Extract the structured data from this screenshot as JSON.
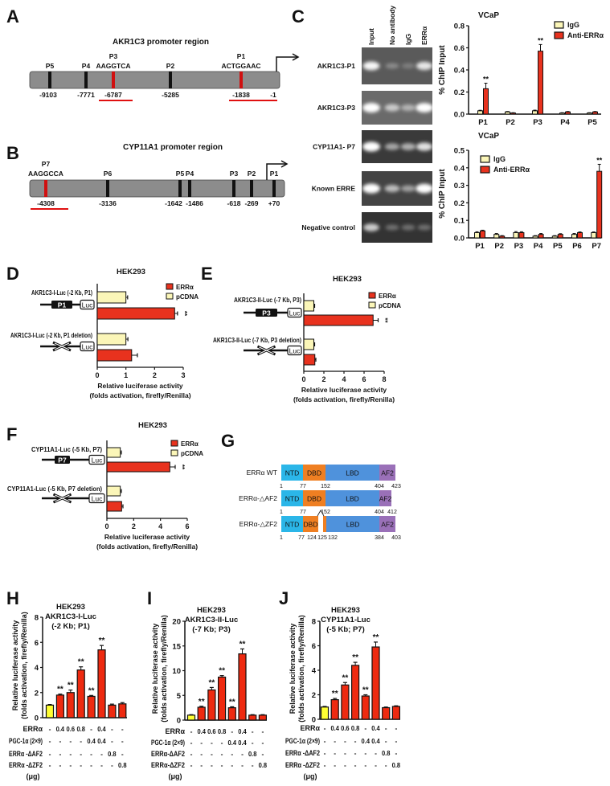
{
  "panel_labels": [
    "A",
    "B",
    "C",
    "D",
    "E",
    "F",
    "G",
    "H",
    "I",
    "J"
  ],
  "promoters": {
    "akr1c3": {
      "title": "AKR1C3 promoter region",
      "sites": [
        {
          "name": "P5",
          "motif": "",
          "position": "-9103",
          "color": "#111111"
        },
        {
          "name": "P4",
          "motif": "",
          "position": "-7771",
          "color": "#111111"
        },
        {
          "name": "P3",
          "motif": "AAGGTCA",
          "position": "-6787",
          "color": "#d01010"
        },
        {
          "name": "P2",
          "motif": "",
          "position": "-5285",
          "color": "#111111"
        },
        {
          "name": "P1",
          "motif": "ACTGGAAC",
          "position": "-1838",
          "color": "#d01010"
        }
      ],
      "end_position": "-1"
    },
    "cyp11a1": {
      "title": "CYP11A1 promoter region",
      "sites": [
        {
          "name": "P7",
          "motif": "AAGGCCA",
          "position": "-4308",
          "color": "#d01010"
        },
        {
          "name": "P6",
          "motif": "",
          "position": "-3136",
          "color": "#111111"
        },
        {
          "name": "P5",
          "motif": "",
          "position": "-1642",
          "color": "#111111"
        },
        {
          "name": "P4",
          "motif": "",
          "position": "-1486",
          "color": "#111111"
        },
        {
          "name": "P3",
          "motif": "",
          "position": "-618",
          "color": "#111111"
        },
        {
          "name": "P2",
          "motif": "",
          "position": "-269",
          "color": "#111111"
        },
        {
          "name": "P1",
          "motif": "",
          "position": "+70",
          "color": "#111111"
        }
      ]
    }
  },
  "gel": {
    "columns": [
      "Input",
      "No antibody",
      "IgG",
      "ERRα"
    ],
    "rows": [
      "AKR1C3-P1",
      "AKR1C3-P3",
      "CYP11A1- P7",
      "Known ERRE",
      "Negative control"
    ]
  },
  "domains": {
    "constructs": [
      {
        "name": "ERRα WT",
        "segments": [
          "NTD",
          "DBD",
          "LBD",
          "AF2"
        ],
        "numbers": [
          "1",
          "77",
          "152",
          "404",
          "423"
        ]
      },
      {
        "name": "ERRα-△AF2",
        "segments": [
          "NTD",
          "DBD",
          "LBD",
          "AF2"
        ],
        "numbers": [
          "1",
          "77",
          "152",
          "404",
          "412"
        ]
      },
      {
        "name": "ERRα-△ZF2",
        "segments": [
          "NTD",
          "DBD",
          "",
          "LBD",
          "AF2"
        ],
        "numbers": [
          "1",
          "77",
          "124",
          "125",
          "132",
          "384",
          "403"
        ]
      }
    ],
    "colors": {
      "NTD": "#2bb6e8",
      "DBD": "#ef7f22",
      "LBD": "#4f92dc",
      "AF2": "#9a70b8"
    }
  },
  "chart_data": [
    {
      "panel": "C-top",
      "type": "bar",
      "title": "VCaP",
      "ylabel": "% ChIP Input",
      "categories": [
        "P1",
        "P2",
        "P3",
        "P4",
        "P5"
      ],
      "ylim": [
        0,
        0.8
      ],
      "yticks": [
        "0.0",
        "0.2",
        "0.4",
        "0.6",
        "0.8"
      ],
      "series": [
        {
          "name": "IgG",
          "color": "#fbf6b8",
          "values": [
            0.03,
            0.02,
            0.03,
            0.01,
            0.01
          ],
          "errors": [
            0.005,
            0.004,
            0.006,
            0.003,
            0.003
          ]
        },
        {
          "name": "Anti-ERRα",
          "color": "#e8321e",
          "values": [
            0.23,
            0.01,
            0.57,
            0.02,
            0.02
          ],
          "errors": [
            0.05,
            0.003,
            0.06,
            0.004,
            0.004
          ],
          "significance": [
            "**",
            "",
            "**",
            "",
            ""
          ]
        }
      ],
      "legend": "top-right"
    },
    {
      "panel": "C-bottom",
      "type": "bar",
      "title": "VCaP",
      "ylabel": "% ChIP Input",
      "categories": [
        "P1",
        "P2",
        "P3",
        "P4",
        "P5",
        "P6",
        "P7"
      ],
      "ylim": [
        0,
        0.5
      ],
      "yticks": [
        "0.0",
        "0.1",
        "0.2",
        "0.3",
        "0.4",
        "0.5"
      ],
      "series": [
        {
          "name": "IgG",
          "color": "#fbf6b8",
          "values": [
            0.03,
            0.02,
            0.03,
            0.01,
            0.01,
            0.02,
            0.03
          ],
          "errors": [
            0.005,
            0.005,
            0.006,
            0.003,
            0.003,
            0.005,
            0.004
          ]
        },
        {
          "name": "Anti-ERRα",
          "color": "#e8321e",
          "values": [
            0.04,
            0.01,
            0.03,
            0.02,
            0.02,
            0.03,
            0.38
          ],
          "errors": [
            0.004,
            0.003,
            0.005,
            0.005,
            0.004,
            0.004,
            0.04
          ],
          "significance": [
            "",
            "",
            "",
            "",
            "",
            "",
            "**"
          ]
        }
      ],
      "legend": "top-left"
    },
    {
      "panel": "D",
      "type": "bar",
      "orientation": "horizontal",
      "title": "HEK293",
      "xlabel": [
        "Relative luciferase activity",
        "(folds activation, firefly/Renilla)"
      ],
      "categories": [
        "AKR1C3-I-Luc (-2 Kb, P1)",
        "AKR1C3-I-Luc (-2 Kb, P1 deletion)"
      ],
      "constructs": [
        {
          "element": "P1",
          "reporter": "Luc",
          "deleted": false
        },
        {
          "element": "",
          "reporter": "Luc",
          "deleted": true
        }
      ],
      "xlim": [
        0,
        3
      ],
      "xticks": [
        "0",
        "1",
        "2",
        "3"
      ],
      "series": [
        {
          "name": "ERRα",
          "color": "#e8321e",
          "values": [
            2.7,
            1.2
          ],
          "errors": [
            0.1,
            0.2
          ],
          "significance": [
            "**",
            ""
          ]
        },
        {
          "name": "pCDNA",
          "color": "#fbf6b8",
          "values": [
            1.0,
            1.0
          ],
          "errors": [
            0.06,
            0.07
          ]
        }
      ],
      "legend": "top-right"
    },
    {
      "panel": "E",
      "type": "bar",
      "orientation": "horizontal",
      "title": "HEK293",
      "xlabel": [
        "Relative luciferase activity",
        "(folds activation, firefly/Renilla)"
      ],
      "categories": [
        "AKR1C3-II-Luc (-7 Kb, P3)",
        "AKR1C3-II-Luc (-7 Kb, P3 deletion)"
      ],
      "constructs": [
        {
          "element": "P3",
          "reporter": "Luc",
          "deleted": false
        },
        {
          "element": "",
          "reporter": "Luc",
          "deleted": true
        }
      ],
      "xlim": [
        0,
        8
      ],
      "xticks": [
        "0",
        "2",
        "4",
        "6",
        "8"
      ],
      "series": [
        {
          "name": "ERRα",
          "color": "#e8321e",
          "values": [
            6.9,
            1.1
          ],
          "errors": [
            0.5,
            0.1
          ],
          "significance": [
            "**",
            ""
          ]
        },
        {
          "name": "pCDNA",
          "color": "#fbf6b8",
          "values": [
            1.0,
            1.0
          ],
          "errors": [
            0.08,
            0.08
          ]
        }
      ],
      "legend": "top-right"
    },
    {
      "panel": "F",
      "type": "bar",
      "orientation": "horizontal",
      "title": "HEK293",
      "xlabel": [
        "Relative luciferase activity",
        "(folds activation, firefly/Renilla)"
      ],
      "categories": [
        "CYP11A1-Luc (-5 Kb, P7)",
        "CYP11A1-Luc (-5 Kb, P7 deletion)"
      ],
      "constructs": [
        {
          "element": "P7",
          "reporter": "Luc",
          "deleted": false
        },
        {
          "element": "",
          "reporter": "Luc",
          "deleted": true
        }
      ],
      "xlim": [
        0,
        6
      ],
      "xticks": [
        "0",
        "2",
        "4",
        "6"
      ],
      "series": [
        {
          "name": "ERRα",
          "color": "#e8321e",
          "values": [
            4.7,
            1.1
          ],
          "errors": [
            0.4,
            0.1
          ],
          "significance": [
            "**",
            ""
          ]
        },
        {
          "name": "pCDNA",
          "color": "#fbf6b8",
          "values": [
            1.0,
            1.0
          ],
          "errors": [
            0.08,
            0.08
          ]
        }
      ],
      "legend": "top-right"
    },
    {
      "panel": "H",
      "type": "bar",
      "title": [
        "HEK293",
        "AKR1C3-I-Luc",
        "(-2 Kb; P1)"
      ],
      "ylabel": [
        "Relative luciferase activity",
        "(folds activation, firefly/Renilla)"
      ],
      "ylim": [
        0,
        8
      ],
      "yticks": [
        "0",
        "2",
        "4",
        "6",
        "8"
      ],
      "values": [
        1.0,
        1.8,
        2.0,
        3.8,
        1.7,
        5.4,
        1.0,
        1.1
      ],
      "errors": [
        0.05,
        0.08,
        0.2,
        0.25,
        0.07,
        0.35,
        0.08,
        0.1
      ],
      "colors": [
        "#ffff33",
        "#ee2a10",
        "#ee2a10",
        "#ee2a10",
        "#ee2a10",
        "#ee2a10",
        "#ee2a10",
        "#ee2a10"
      ],
      "significance": [
        "",
        "**",
        "**",
        "**",
        "**",
        "**",
        "",
        ""
      ],
      "treatments": [
        {
          "label": "ERRα",
          "values": [
            "-",
            "0.4",
            "0.6",
            "0.8",
            "-",
            "0.4",
            "-",
            "-"
          ]
        },
        {
          "label": "PGC-1α (2×9)",
          "values": [
            "-",
            "-",
            "-",
            "-",
            "0.4",
            "0.4",
            "-",
            "-"
          ]
        },
        {
          "label": "ERRα -ΔAF2",
          "values": [
            "-",
            "-",
            "-",
            "-",
            "-",
            "-",
            "0.8",
            "-"
          ]
        },
        {
          "label": "ERRα -ΔZF2",
          "values": [
            "-",
            "-",
            "-",
            "-",
            "-",
            "-",
            "-",
            "0.8"
          ]
        }
      ],
      "unit": "(μg)"
    },
    {
      "panel": "I",
      "type": "bar",
      "title": [
        "HEK293",
        "AKR1C3-II-Luc",
        "(-7 Kb; P3)"
      ],
      "ylabel": [
        "Relative luciferase activity",
        "(folds activation, firefly/Renilla)"
      ],
      "ylim": [
        0,
        20
      ],
      "yticks": [
        "0",
        "5",
        "10",
        "15",
        "20"
      ],
      "values": [
        1.0,
        2.6,
        6.1,
        8.7,
        2.5,
        13.4,
        1.0,
        1.0
      ],
      "errors": [
        0.1,
        0.2,
        0.5,
        0.3,
        0.2,
        1.0,
        0.1,
        0.1
      ],
      "colors": [
        "#ffff33",
        "#ee2a10",
        "#ee2a10",
        "#ee2a10",
        "#ee2a10",
        "#ee2a10",
        "#ee2a10",
        "#ee2a10"
      ],
      "significance": [
        "",
        "**",
        "**",
        "**",
        "**",
        "**",
        "",
        ""
      ],
      "treatments": [
        {
          "label": "ERRα",
          "values": [
            "-",
            "0.4",
            "0.6",
            "0.8",
            "-",
            "0.4",
            "-",
            "-"
          ]
        },
        {
          "label": "PGC-1α (2×9)",
          "values": [
            "-",
            "-",
            "-",
            "-",
            "0.4",
            "0.4",
            "-",
            "-"
          ]
        },
        {
          "label": "ERRα-ΔAF2",
          "values": [
            "-",
            "-",
            "-",
            "-",
            "-",
            "-",
            "0.8",
            "-"
          ]
        },
        {
          "label": "ERRα-ΔZF2",
          "values": [
            "-",
            "-",
            "-",
            "-",
            "-",
            "-",
            "-",
            "0.8"
          ]
        }
      ],
      "unit": "(μg)"
    },
    {
      "panel": "J",
      "type": "bar",
      "title": [
        "HEK293",
        "CYP11A1-Luc",
        "(-5 Kb; P7)"
      ],
      "ylabel": [
        "Relative luciferase activity",
        "(folds activation, firefly/Renilla)"
      ],
      "ylim": [
        0,
        8
      ],
      "yticks": [
        "0",
        "2",
        "4",
        "6",
        "8"
      ],
      "values": [
        1.0,
        1.6,
        2.8,
        4.4,
        1.9,
        5.9,
        0.95,
        1.05
      ],
      "errors": [
        0.05,
        0.1,
        0.2,
        0.25,
        0.1,
        0.4,
        0.05,
        0.05
      ],
      "colors": [
        "#ffff33",
        "#ee2a10",
        "#ee2a10",
        "#ee2a10",
        "#ee2a10",
        "#ee2a10",
        "#ee2a10",
        "#ee2a10"
      ],
      "significance": [
        "",
        "**",
        "**",
        "**",
        "**",
        "**",
        "",
        ""
      ],
      "treatments": [
        {
          "label": "ERRα",
          "values": [
            "-",
            "0.4",
            "0.6",
            "0.8",
            "-",
            "0.4",
            "-",
            "-"
          ]
        },
        {
          "label": "PGC-1α (2×9)",
          "values": [
            "-",
            "-",
            "-",
            "-",
            "0.4",
            "0.4",
            "-",
            "-"
          ]
        },
        {
          "label": "ERRα -ΔAF2",
          "values": [
            "-",
            "-",
            "-",
            "-",
            "-",
            "-",
            "0.8",
            "-"
          ]
        },
        {
          "label": "ERRα -ΔZF2",
          "values": [
            "-",
            "-",
            "-",
            "-",
            "-",
            "-",
            "-",
            "0.8"
          ]
        }
      ],
      "unit": "(μg)"
    }
  ]
}
